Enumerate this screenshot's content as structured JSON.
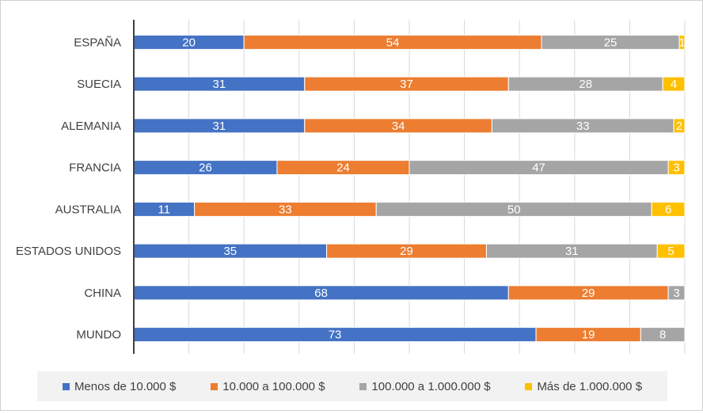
{
  "chart_data": {
    "type": "bar",
    "orientation": "horizontal",
    "stacked": true,
    "categories": [
      "ESPAÑA",
      "SUECIA",
      "ALEMANIA",
      "FRANCIA",
      "AUSTRALIA",
      "ESTADOS UNIDOS",
      "CHINA",
      "MUNDO"
    ],
    "series": [
      {
        "name": "Menos de 10.000 $",
        "color": "#4472c4",
        "values": [
          20,
          31,
          31,
          26,
          11,
          35,
          68,
          73
        ]
      },
      {
        "name": "10.000 a 100.000 $",
        "color": "#ed7d31",
        "values": [
          54,
          37,
          34,
          24,
          33,
          29,
          29,
          19
        ]
      },
      {
        "name": "100.000 a 1.000.000 $",
        "color": "#a5a5a5",
        "values": [
          25,
          28,
          33,
          47,
          50,
          31,
          3,
          8
        ]
      },
      {
        "name": "Más de 1.000.000 $",
        "color": "#ffc000",
        "values": [
          1,
          4,
          2,
          3,
          6,
          5,
          0,
          0
        ]
      }
    ],
    "xlim": [
      0,
      100
    ],
    "grid": true,
    "legend_position": "bottom"
  }
}
